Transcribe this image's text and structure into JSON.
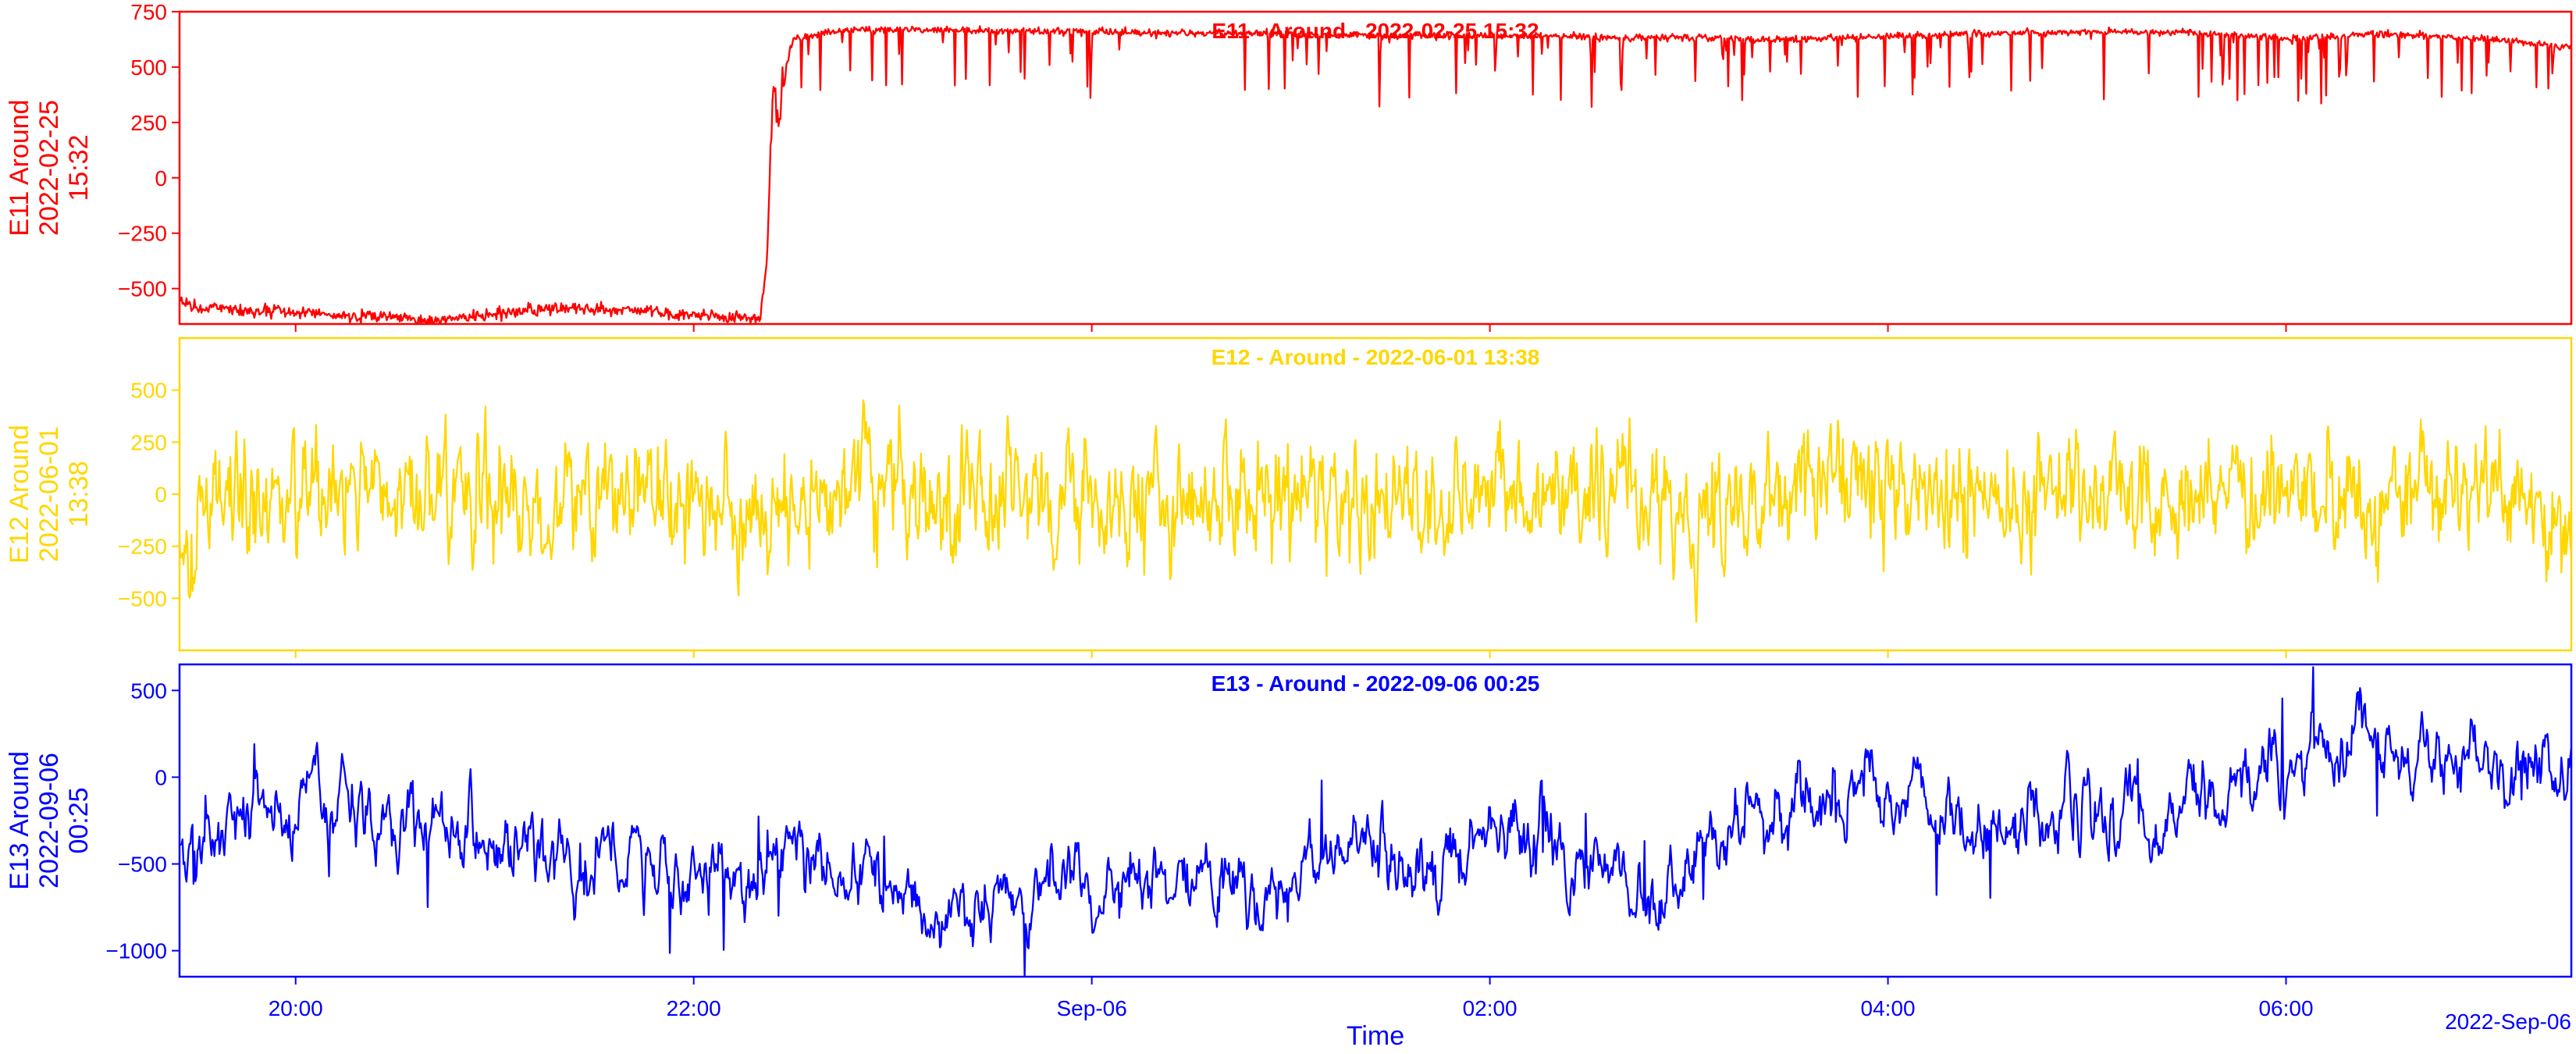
{
  "figure": {
    "xlabel": "Time",
    "date_offset_label": "2022-Sep-06",
    "x_ticks": [
      {
        "t": 60,
        "label": "20:00"
      },
      {
        "t": 180,
        "label": "22:00"
      },
      {
        "t": 300,
        "label": "Sep-06"
      },
      {
        "t": 420,
        "label": "02:00"
      },
      {
        "t": 540,
        "label": "04:00"
      },
      {
        "t": 660,
        "label": "06:00"
      }
    ]
  },
  "chart_data": [
    {
      "type": "line",
      "title": "E11 - Around - 2022-02-25 15:32",
      "ylabel": "E11 Around 2022-02-25 15:32",
      "ylabel_lines": [
        "E11 Around",
        "2022-02-25",
        "15:32"
      ],
      "color": "#ff0000",
      "xlim": [
        "2022-09-05 18:25",
        "2022-09-06 06:26"
      ],
      "ylim": [
        -660,
        750
      ],
      "yticks": [
        750,
        500,
        250,
        0,
        -250,
        -500
      ],
      "grid": false,
      "x": [
        "2022-09-05 18:25",
        "2022-09-05 18:30",
        "2022-09-05 18:35",
        "2022-09-05 18:45",
        "2022-09-05 19:00",
        "2022-09-05 19:15",
        "2022-09-05 19:30",
        "2022-09-05 19:40",
        "2022-09-05 19:45",
        "2022-09-05 20:00",
        "2022-09-05 20:10",
        "2022-09-05 20:20",
        "2022-09-05 20:30",
        "2022-09-05 20:40",
        "2022-09-05 20:50",
        "2022-09-05 21:00",
        "2022-09-05 21:15",
        "2022-09-05 21:20",
        "2022-09-05 21:22",
        "2022-09-05 21:24",
        "2022-09-05 21:26",
        "2022-09-05 21:28",
        "2022-09-05 21:30",
        "2022-09-05 21:40",
        "2022-09-05 22:00",
        "2022-09-05 22:30",
        "2022-09-05 23:00",
        "2022-09-05 23:30",
        "2022-09-06 00:00",
        "2022-09-06 00:30",
        "2022-09-06 01:00",
        "2022-09-06 01:30",
        "2022-09-06 02:00",
        "2022-09-06 02:30",
        "2022-09-06 03:00",
        "2022-09-06 03:30",
        "2022-09-06 04:00",
        "2022-09-06 04:30",
        "2022-09-06 05:00",
        "2022-09-06 05:30",
        "2022-09-06 06:00",
        "2022-09-06 06:26"
      ],
      "values": [
        -560,
        -590,
        -580,
        -600,
        -610,
        -625,
        -630,
        -650,
        -640,
        -615,
        -600,
        -590,
        -595,
        -600,
        -610,
        -620,
        -630,
        -640,
        -400,
        430,
        200,
        520,
        620,
        660,
        670,
        665,
        660,
        655,
        650,
        640,
        645,
        635,
        630,
        625,
        640,
        650,
        660,
        655,
        630,
        650,
        625,
        590
      ]
    },
    {
      "type": "line",
      "title": "E12 - Around - 2022-06-01 13:38",
      "ylabel": "E12 Around 2022-06-01 13:38",
      "ylabel_lines": [
        "E12 Around",
        "2022-06-01",
        "13:38"
      ],
      "color": "#ffd700",
      "xlim": [
        "2022-09-05 18:25",
        "2022-09-06 06:26"
      ],
      "ylim": [
        -750,
        750
      ],
      "yticks": [
        500,
        250,
        0,
        -250,
        -500
      ],
      "grid": false,
      "x": [
        "2022-09-05 18:25",
        "2022-09-05 18:45",
        "2022-09-05 19:05",
        "2022-09-05 19:25",
        "2022-09-05 19:45",
        "2022-09-05 20:05",
        "2022-09-05 20:25",
        "2022-09-05 20:45",
        "2022-09-05 21:05",
        "2022-09-05 21:25",
        "2022-09-05 21:45",
        "2022-09-05 22:05",
        "2022-09-05 22:25",
        "2022-09-05 22:45",
        "2022-09-05 23:05",
        "2022-09-05 23:25",
        "2022-09-05 23:45",
        "2022-09-06 00:05",
        "2022-09-06 00:25",
        "2022-09-06 00:45",
        "2022-09-06 01:05",
        "2022-09-06 01:25",
        "2022-09-06 01:45",
        "2022-09-06 02:05",
        "2022-09-06 02:25",
        "2022-09-06 02:45",
        "2022-09-06 03:05",
        "2022-09-06 03:25",
        "2022-09-06 03:45",
        "2022-09-06 04:05",
        "2022-09-06 04:25",
        "2022-09-06 04:45",
        "2022-09-06 05:05",
        "2022-09-06 05:25",
        "2022-09-06 05:45",
        "2022-09-06 06:05",
        "2022-09-06 06:26"
      ],
      "values": [
        -150,
        -50,
        0,
        50,
        0,
        -80,
        0,
        50,
        -50,
        -100,
        50,
        0,
        -50,
        0,
        -100,
        0,
        50,
        0,
        -50,
        -50,
        0,
        50,
        0,
        -100,
        0,
        50,
        0,
        -50,
        50,
        0,
        -50,
        0,
        50,
        -50,
        50,
        0,
        -200
      ]
    },
    {
      "type": "line",
      "title": "E13 - Around - 2022-09-06 00:25",
      "ylabel": "E13 Around 2022-09-06 00:25",
      "ylabel_lines": [
        "E13 Around",
        "2022-09-06",
        "00:25"
      ],
      "color": "#0000ff",
      "xlim": [
        "2022-09-05 18:25",
        "2022-09-06 06:26"
      ],
      "ylim": [
        -1150,
        650
      ],
      "yticks": [
        500,
        0,
        -500,
        -1000
      ],
      "grid": false,
      "x": [
        "2022-09-05 18:25",
        "2022-09-05 18:40",
        "2022-09-05 19:00",
        "2022-09-05 19:15",
        "2022-09-05 19:30",
        "2022-09-05 19:50",
        "2022-09-05 20:10",
        "2022-09-05 20:30",
        "2022-09-05 20:50",
        "2022-09-05 21:10",
        "2022-09-05 21:30",
        "2022-09-05 21:50",
        "2022-09-05 22:10",
        "2022-09-05 22:30",
        "2022-09-05 22:50",
        "2022-09-05 23:10",
        "2022-09-05 23:30",
        "2022-09-05 23:50",
        "2022-09-06 00:10",
        "2022-09-06 00:30",
        "2022-09-06 00:50",
        "2022-09-06 01:10",
        "2022-09-06 01:30",
        "2022-09-06 01:50",
        "2022-09-06 02:10",
        "2022-09-06 02:30",
        "2022-09-06 02:50",
        "2022-09-06 03:10",
        "2022-09-06 03:30",
        "2022-09-06 03:50",
        "2022-09-06 04:10",
        "2022-09-06 04:30",
        "2022-09-06 04:50",
        "2022-09-06 05:10",
        "2022-09-06 05:30",
        "2022-09-06 05:50",
        "2022-09-06 06:10",
        "2022-09-06 06:26"
      ],
      "values": [
        -400,
        -200,
        -150,
        -100,
        -350,
        -250,
        -550,
        -500,
        -550,
        -600,
        -500,
        -600,
        -750,
        -650,
        -600,
        -700,
        -550,
        -700,
        -400,
        -500,
        -400,
        -350,
        -500,
        -650,
        -350,
        -100,
        -50,
        -150,
        -300,
        -200,
        -250,
        -200,
        -100,
        100,
        250,
        150,
        200,
        50
      ]
    }
  ]
}
